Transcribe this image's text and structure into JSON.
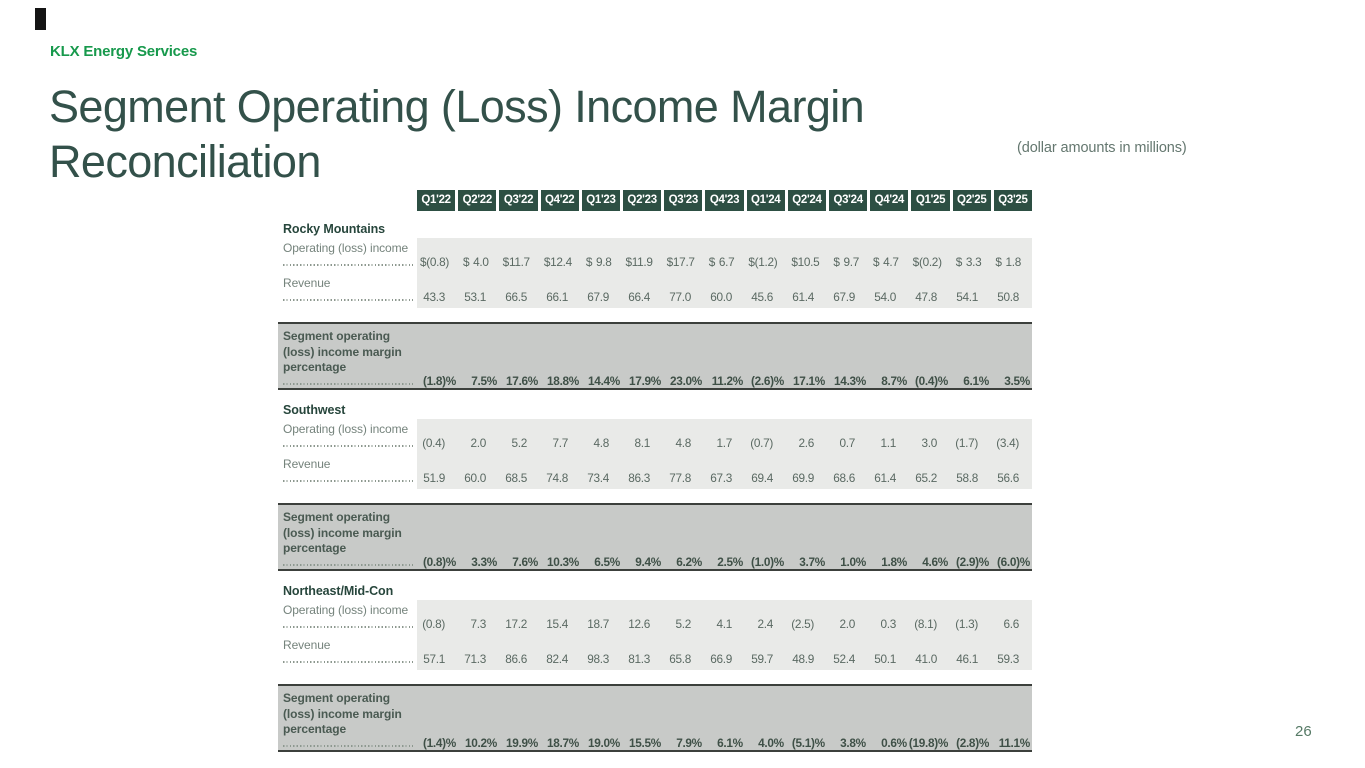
{
  "slide": {
    "brand": "KLX Energy Services",
    "title_lines": [
      "Segment Operating (Loss) Income Margin",
      "Reconciliation"
    ],
    "note": "(dollar amounts in millions)",
    "page_number": "26"
  },
  "colors": {
    "brand_green": "#17994c",
    "title_color": "#33514a",
    "header_bg": "#2d4f43",
    "band_bg": "#c8cac8",
    "box_bg": "#e9eae8"
  },
  "table": {
    "columns": [
      "Q1'22",
      "Q2'22",
      "Q3'22",
      "Q4'22",
      "Q1'23",
      "Q2'23",
      "Q3'23",
      "Q4'23",
      "Q1'24",
      "Q2'24",
      "Q3'24",
      "Q4'24",
      "Q1'25",
      "Q2'25",
      "Q3'25"
    ],
    "row_labels": {
      "operating_income": "Operating (loss) income",
      "revenue": "Revenue",
      "margin": "Segment operating (loss) income margin percentage"
    },
    "sections": [
      {
        "name": "Rocky Mountains",
        "operating_income": [
          "$ (0.8)",
          "$ 4.0",
          "$ 11.7",
          "$ 12.4",
          "$ 9.8",
          "$ 11.9",
          "$ 17.7",
          "$ 6.7",
          "$ (1.2)",
          "$ 10.5",
          "$ 9.7",
          "$ 4.7",
          "$ (0.2)",
          "$ 3.3",
          "$ 1.8"
        ],
        "revenue": [
          "43.3",
          "53.1",
          "66.5",
          "66.1",
          "67.9",
          "66.4",
          "77.0",
          "60.0",
          "45.6",
          "61.4",
          "67.9",
          "54.0",
          "47.8",
          "54.1",
          "50.8"
        ],
        "margin": [
          "(1.8)%",
          "7.5%",
          "17.6%",
          "18.8%",
          "14.4%",
          "17.9%",
          "23.0%",
          "11.2%",
          "(2.6)%",
          "17.1%",
          "14.3%",
          "8.7%",
          "(0.4)%",
          "6.1%",
          "3.5%"
        ]
      },
      {
        "name": "Southwest",
        "operating_income": [
          "(0.4)",
          "2.0",
          "5.2",
          "7.7",
          "4.8",
          "8.1",
          "4.8",
          "1.7",
          "(0.7)",
          "2.6",
          "0.7",
          "1.1",
          "3.0",
          "(1.7)",
          "(3.4)"
        ],
        "revenue": [
          "51.9",
          "60.0",
          "68.5",
          "74.8",
          "73.4",
          "86.3",
          "77.8",
          "67.3",
          "69.4",
          "69.9",
          "68.6",
          "61.4",
          "65.2",
          "58.8",
          "56.6"
        ],
        "margin": [
          "(0.8)%",
          "3.3%",
          "7.6%",
          "10.3%",
          "6.5%",
          "9.4%",
          "6.2%",
          "2.5%",
          "(1.0)%",
          "3.7%",
          "1.0%",
          "1.8%",
          "4.6%",
          "(2.9)%",
          "(6.0)%"
        ]
      },
      {
        "name": "Northeast/Mid-Con",
        "operating_income": [
          "(0.8)",
          "7.3",
          "17.2",
          "15.4",
          "18.7",
          "12.6",
          "5.2",
          "4.1",
          "2.4",
          "(2.5)",
          "2.0",
          "0.3",
          "(8.1)",
          "(1.3)",
          "6.6"
        ],
        "revenue": [
          "57.1",
          "71.3",
          "86.6",
          "82.4",
          "98.3",
          "81.3",
          "65.8",
          "66.9",
          "59.7",
          "48.9",
          "52.4",
          "50.1",
          "41.0",
          "46.1",
          "59.3"
        ],
        "margin": [
          "(1.4)%",
          "10.2%",
          "19.9%",
          "18.7%",
          "19.0%",
          "15.5%",
          "7.9%",
          "6.1%",
          "4.0%",
          "(5.1)%",
          "3.8%",
          "0.6%",
          "(19.8)%",
          "(2.8)%",
          "11.1%"
        ]
      }
    ]
  }
}
